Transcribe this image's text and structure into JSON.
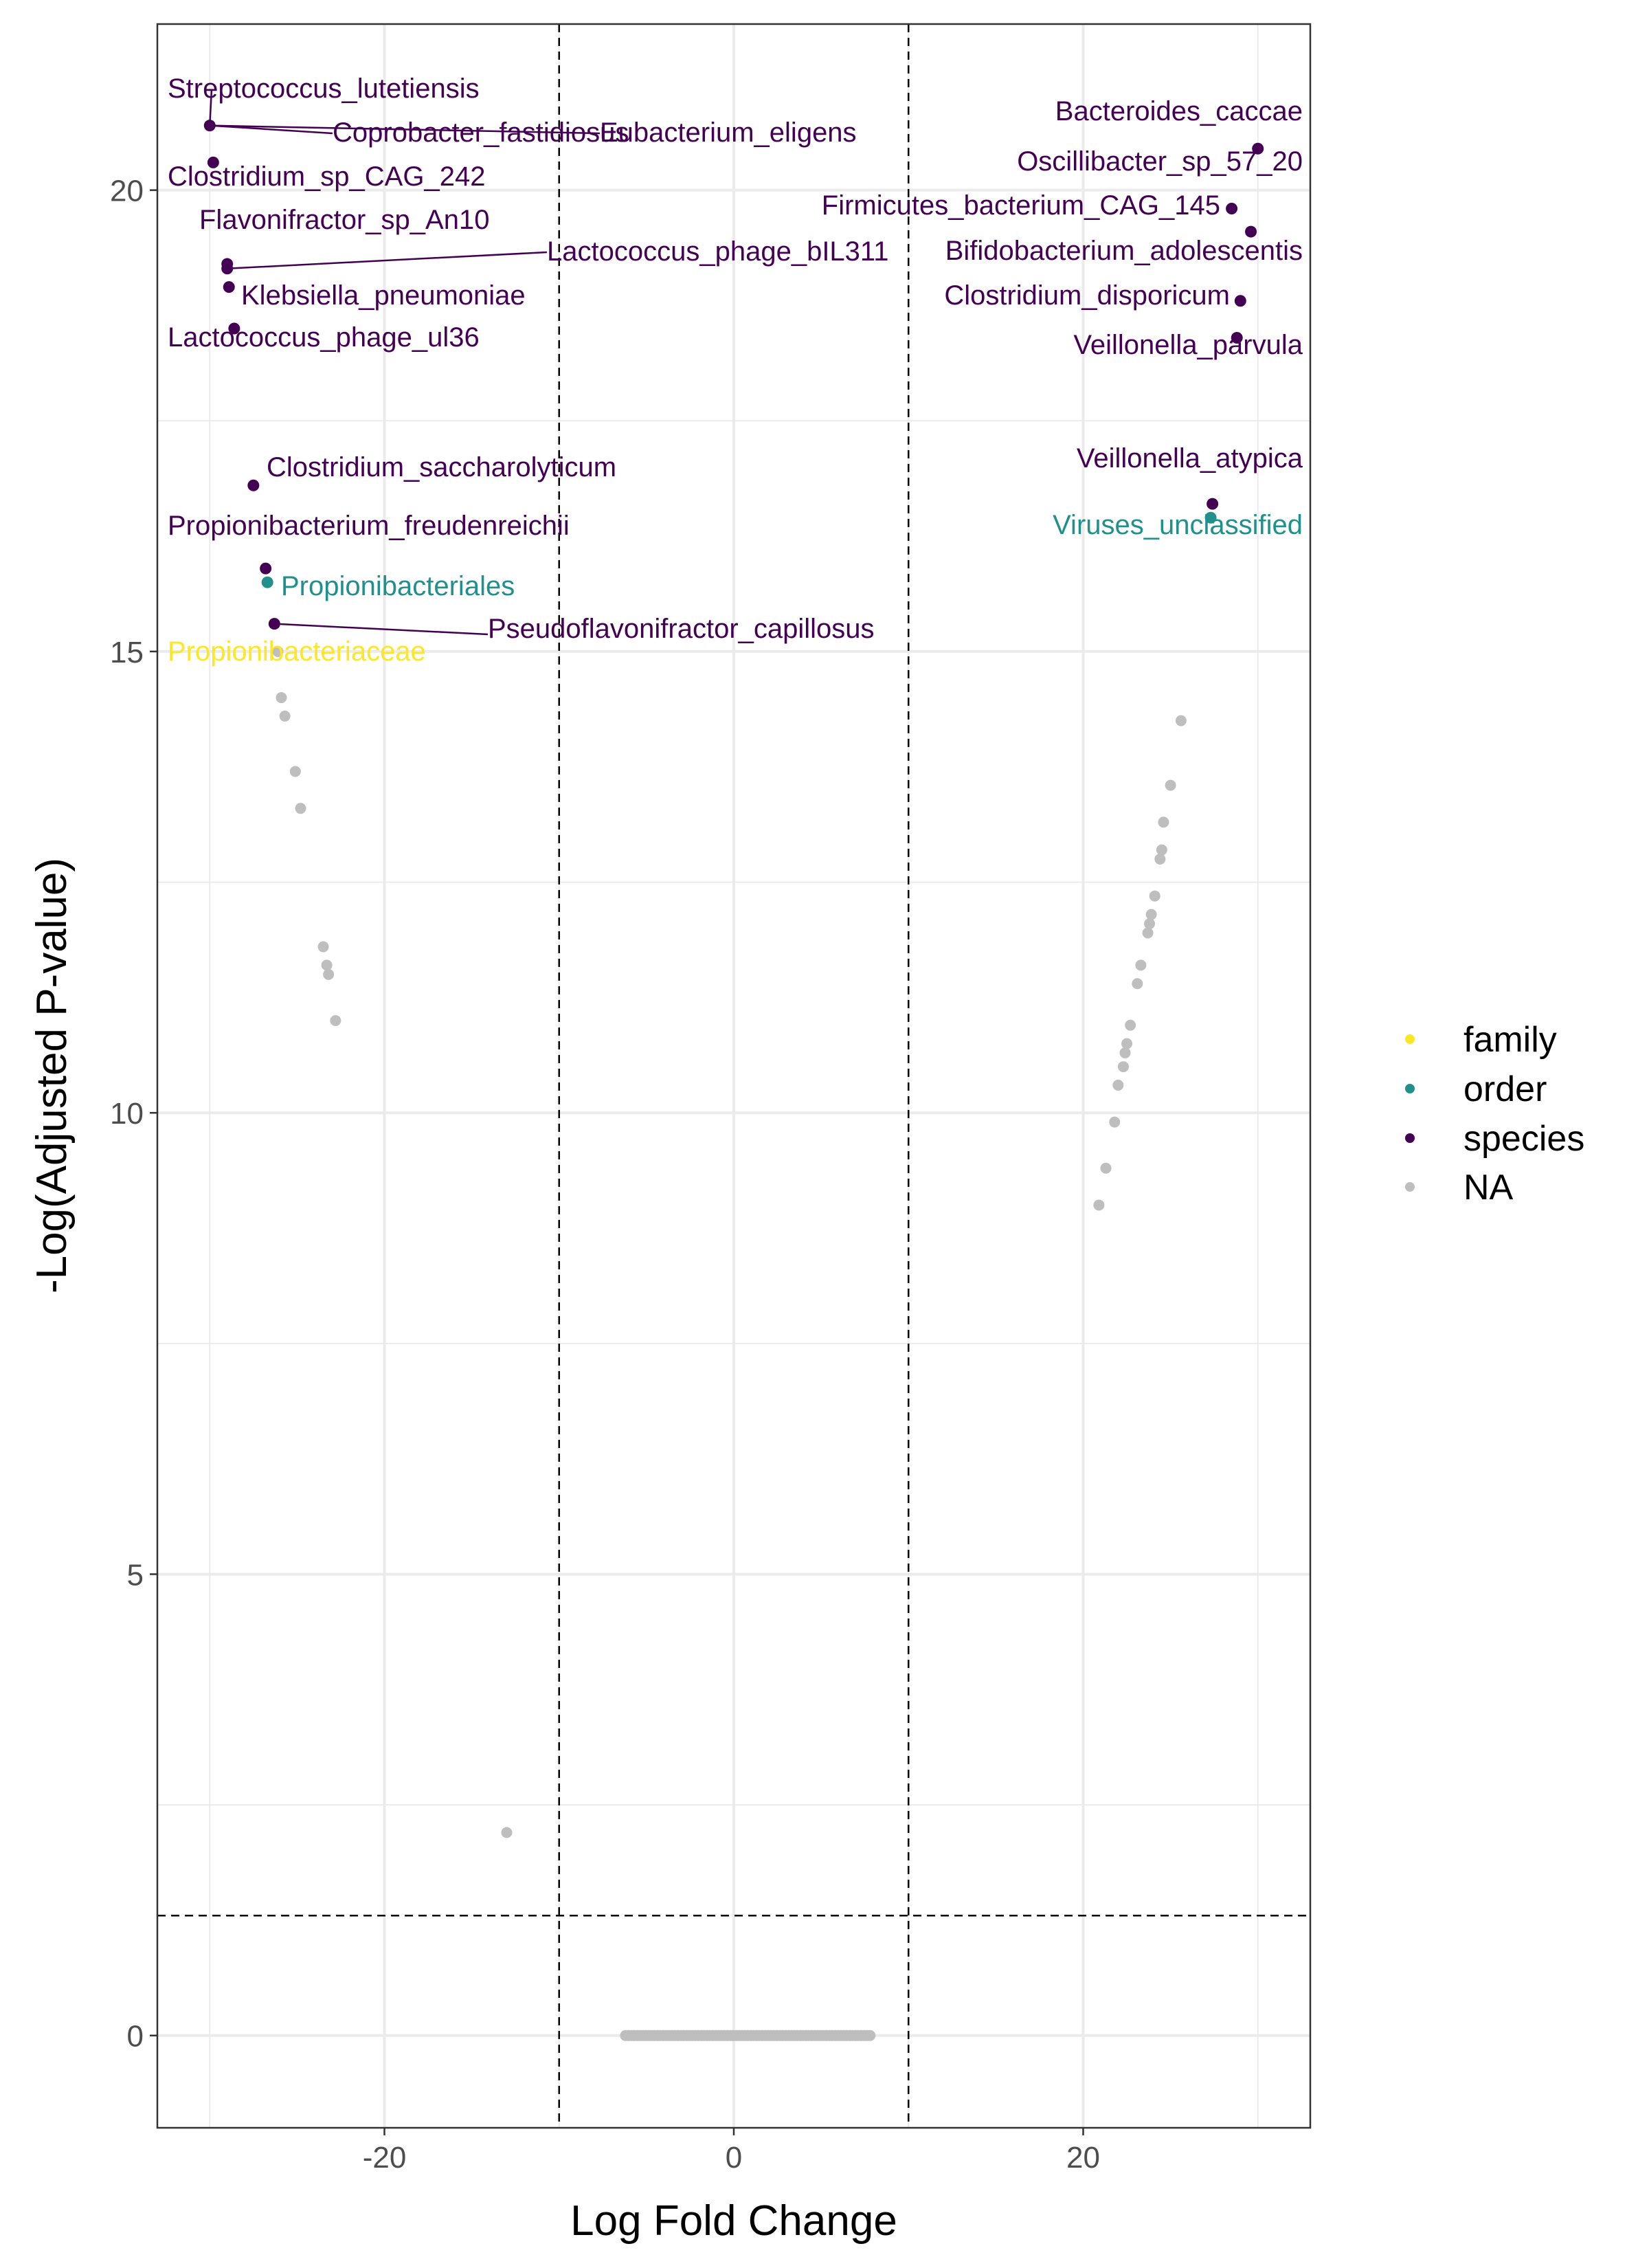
{
  "colors": {
    "family": "#FDE725",
    "order": "#21908C",
    "species": "#440154",
    "na": "#BEBEBE",
    "grid": "#EBEBEB",
    "panel_border": "#333333",
    "threshold": "#000000"
  },
  "chart_data": {
    "type": "scatter",
    "title": "",
    "xlabel": "Log Fold Change",
    "ylabel": "-Log(Adjusted P-value)",
    "xlim": [
      -33,
      33
    ],
    "ylim": [
      -1,
      21.8
    ],
    "x_ticks": [
      -20,
      0,
      20
    ],
    "x_tick_labels": [
      "-20",
      "0",
      "20"
    ],
    "y_ticks": [
      0,
      5,
      10,
      15,
      20
    ],
    "y_tick_labels": [
      "0",
      "5",
      "10",
      "15",
      "20"
    ],
    "grid": true,
    "thresholds": {
      "x": [
        -10,
        10
      ],
      "y": 1.3
    },
    "legend": {
      "position": "right",
      "entries": [
        {
          "key": "family",
          "label": "family"
        },
        {
          "key": "order",
          "label": "order"
        },
        {
          "key": "species",
          "label": "species"
        },
        {
          "key": "na",
          "label": "NA"
        }
      ]
    },
    "labeled_points": [
      {
        "x": -30.0,
        "y": 20.7,
        "group": "species",
        "label": "Streptococcus_lutetiensis"
      },
      {
        "x": -30.0,
        "y": 20.7,
        "group": "species",
        "label": "Coprobacter_fastidiosus"
      },
      {
        "x": -30.0,
        "y": 20.7,
        "group": "species",
        "label": "Eubacterium_eligens"
      },
      {
        "x": -29.8,
        "y": 20.3,
        "group": "species",
        "label": "Clostridium_sp_CAG_242"
      },
      {
        "x": -29.0,
        "y": 19.2,
        "group": "species",
        "label": "Flavonifractor_sp_An10"
      },
      {
        "x": -29.0,
        "y": 19.15,
        "group": "species",
        "label": "Lactococcus_phage_bIL311"
      },
      {
        "x": -28.9,
        "y": 18.95,
        "group": "species",
        "label": "Klebsiella_pneumoniae"
      },
      {
        "x": -28.6,
        "y": 18.5,
        "group": "species",
        "label": "Lactococcus_phage_ul36"
      },
      {
        "x": -27.5,
        "y": 16.8,
        "group": "species",
        "label": "Clostridium_saccharolyticum"
      },
      {
        "x": -26.8,
        "y": 15.9,
        "group": "species",
        "label": "Propionibacterium_freudenreichii"
      },
      {
        "x": -26.7,
        "y": 15.75,
        "group": "order",
        "label": "Propionibacteriales"
      },
      {
        "x": -26.3,
        "y": 15.3,
        "group": "family",
        "label": "Propionibacteriaceae"
      },
      {
        "x": -26.3,
        "y": 15.3,
        "group": "species",
        "label": "Pseudoflavonifractor_capillosus"
      },
      {
        "x": 30.0,
        "y": 20.45,
        "group": "species",
        "label": "Bacteroides_caccae"
      },
      {
        "x": 28.5,
        "y": 19.8,
        "group": "species",
        "label": "Oscillibacter_sp_57_20"
      },
      {
        "x": 29.6,
        "y": 19.55,
        "group": "species",
        "label": "Firmicutes_bacterium_CAG_145"
      },
      {
        "x": 29.6,
        "y": 19.55,
        "group": "species",
        "label": "Bifidobacterium_adolescentis"
      },
      {
        "x": 29.0,
        "y": 18.8,
        "group": "species",
        "label": "Clostridium_disporicum"
      },
      {
        "x": 28.8,
        "y": 18.4,
        "group": "species",
        "label": "Veillonella_parvula"
      },
      {
        "x": 27.4,
        "y": 16.6,
        "group": "species",
        "label": "Veillonella_atypica"
      },
      {
        "x": 27.3,
        "y": 16.45,
        "group": "order",
        "label": "Viruses_unclassified"
      }
    ],
    "unlabeled_points": [
      {
        "x": -26.1,
        "y": 15.0
      },
      {
        "x": -25.9,
        "y": 14.5
      },
      {
        "x": -25.7,
        "y": 14.3
      },
      {
        "x": -25.1,
        "y": 13.7
      },
      {
        "x": -24.8,
        "y": 13.3
      },
      {
        "x": -23.5,
        "y": 11.8
      },
      {
        "x": -23.3,
        "y": 11.6
      },
      {
        "x": -23.2,
        "y": 11.5
      },
      {
        "x": -22.8,
        "y": 11.0
      },
      {
        "x": -13.0,
        "y": 2.2
      },
      {
        "x": 25.6,
        "y": 14.25
      },
      {
        "x": 25.0,
        "y": 13.55
      },
      {
        "x": 24.6,
        "y": 13.15
      },
      {
        "x": 24.5,
        "y": 12.85
      },
      {
        "x": 24.4,
        "y": 12.75
      },
      {
        "x": 24.1,
        "y": 12.35
      },
      {
        "x": 23.9,
        "y": 12.15
      },
      {
        "x": 23.8,
        "y": 12.05
      },
      {
        "x": 23.7,
        "y": 11.95
      },
      {
        "x": 23.3,
        "y": 11.6
      },
      {
        "x": 23.1,
        "y": 11.4
      },
      {
        "x": 22.7,
        "y": 10.95
      },
      {
        "x": 22.5,
        "y": 10.75
      },
      {
        "x": 22.4,
        "y": 10.65
      },
      {
        "x": 22.3,
        "y": 10.5
      },
      {
        "x": 22.0,
        "y": 10.3
      },
      {
        "x": 21.8,
        "y": 9.9
      },
      {
        "x": 21.3,
        "y": 9.4
      },
      {
        "x": 20.9,
        "y": 9.0
      }
    ],
    "na_zero_cluster": {
      "x_from": -6.2,
      "x_to": 7.8,
      "count": 85,
      "y": 0
    }
  }
}
